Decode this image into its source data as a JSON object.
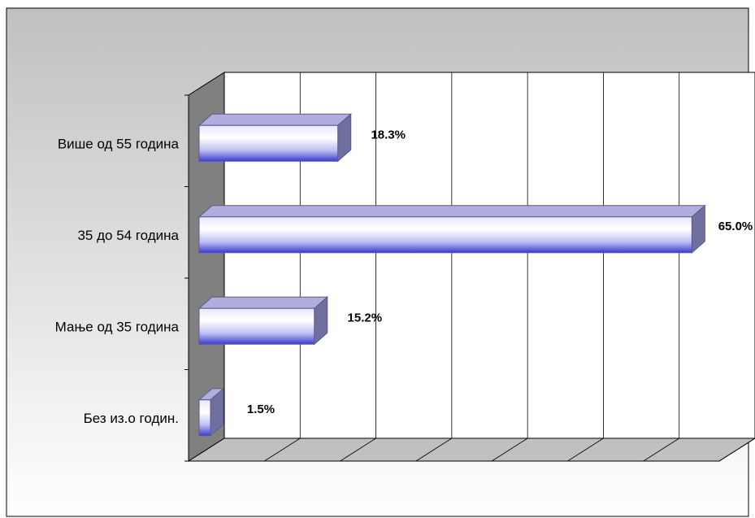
{
  "chart_data": {
    "type": "bar",
    "orientation": "horizontal",
    "three_d": true,
    "categories": [
      "Више од 55 година",
      "35 до 54 година",
      "Мање од 35 година",
      "Без из.о годин."
    ],
    "values": [
      18.3,
      65.0,
      15.2,
      1.5
    ],
    "value_labels": [
      "18.3%",
      "65.0%",
      "15.2%",
      "1.5%"
    ],
    "xlim": [
      0,
      70
    ],
    "x_gridline_step": 10,
    "grid": true,
    "legend": "none",
    "title": "",
    "xlabel": "",
    "ylabel": "",
    "colors": {
      "background_top": "#c0c0c0",
      "background_bottom": "#ffffff",
      "plot_wall": "#ffffff",
      "side_wall": "#808080",
      "floor": "#c0c0c0",
      "bar_edge": "#5a5a8a",
      "bar_light": "#ffffff",
      "bar_mid": "#bdbdf5",
      "bar_dark": "#3b3bd0",
      "bar_top": "#aeaedf",
      "bar_end": "#7070a0"
    }
  }
}
